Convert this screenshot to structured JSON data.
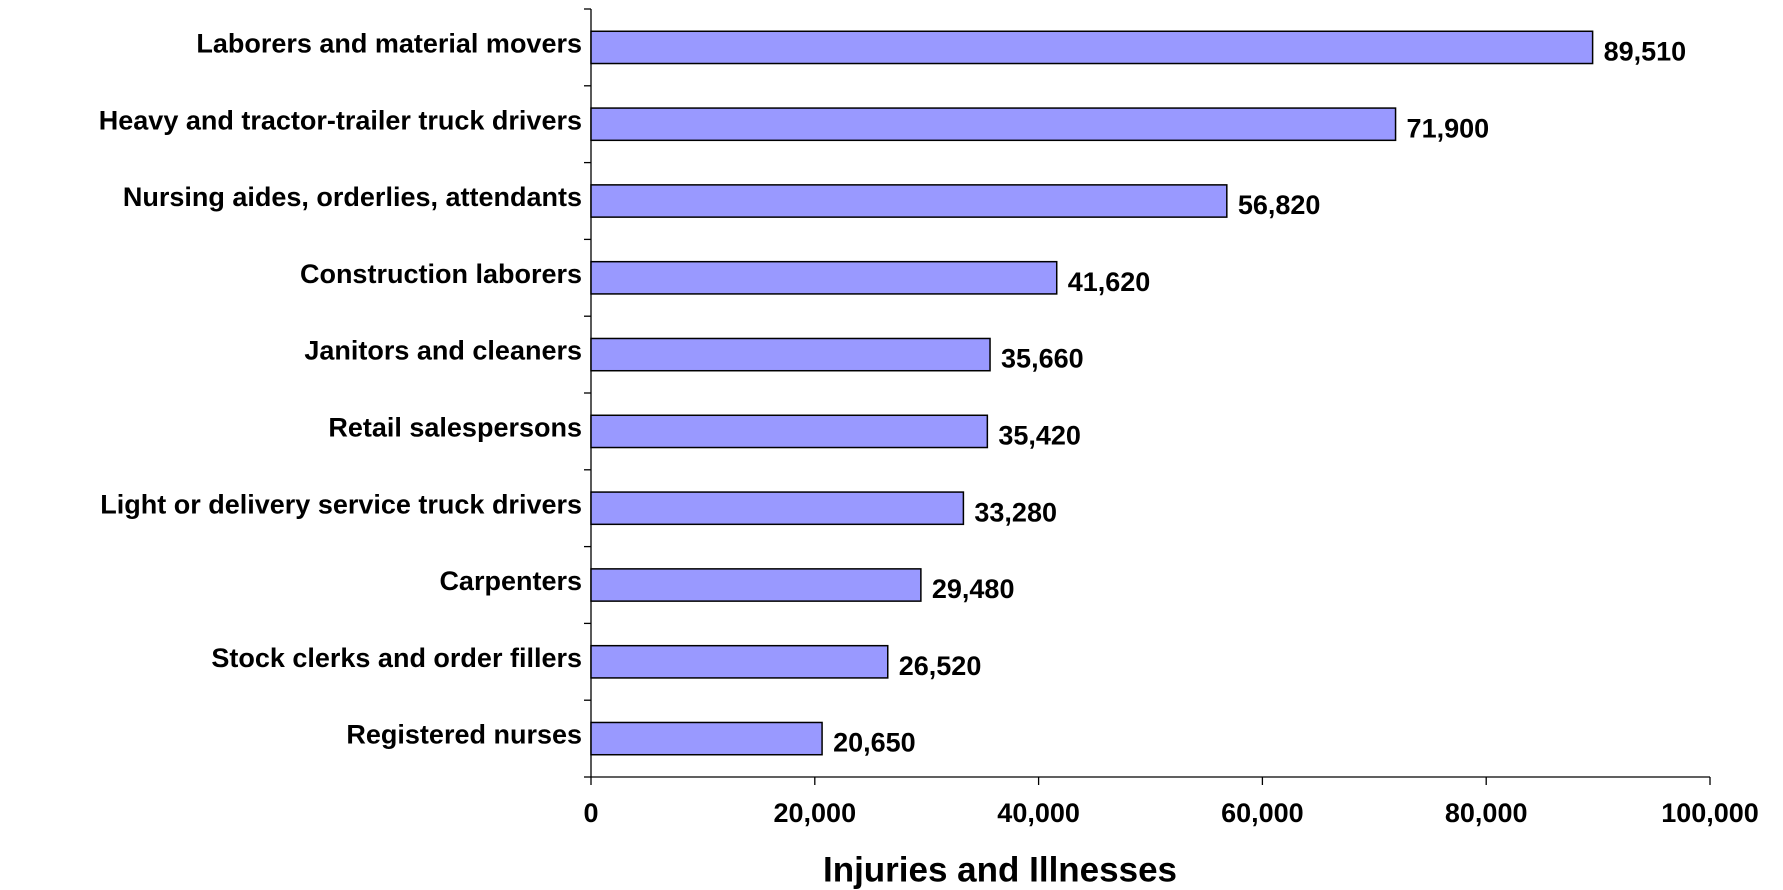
{
  "chart_data": {
    "type": "bar",
    "orientation": "horizontal",
    "categories": [
      "Laborers and material movers",
      "Heavy and tractor-trailer truck drivers",
      "Nursing aides, orderlies, attendants",
      "Construction laborers",
      "Janitors and cleaners",
      "Retail salespersons",
      "Light or delivery service truck drivers",
      "Carpenters",
      "Stock clerks and order fillers",
      "Registered nurses"
    ],
    "values": [
      89510,
      71900,
      56820,
      41620,
      35660,
      35420,
      33280,
      29480,
      26520,
      20650
    ],
    "value_labels": [
      "89,510",
      "71,900",
      "56,820",
      "41,620",
      "35,660",
      "35,420",
      "33,280",
      "29,480",
      "26,520",
      "20,650"
    ],
    "color": "#9999ff",
    "xlabel": "Injuries and Illnesses",
    "xlim": [
      0,
      100000
    ],
    "xticks": [
      0,
      {
        "value": 20000,
        "label": "20,000"
      },
      {
        "value": 40000,
        "label": "40,000"
      },
      {
        "value": 60000,
        "label": "60,000"
      },
      {
        "value": 80000,
        "label": "80,000"
      },
      {
        "value": 100000,
        "label": "100,000"
      }
    ],
    "grid": false
  }
}
